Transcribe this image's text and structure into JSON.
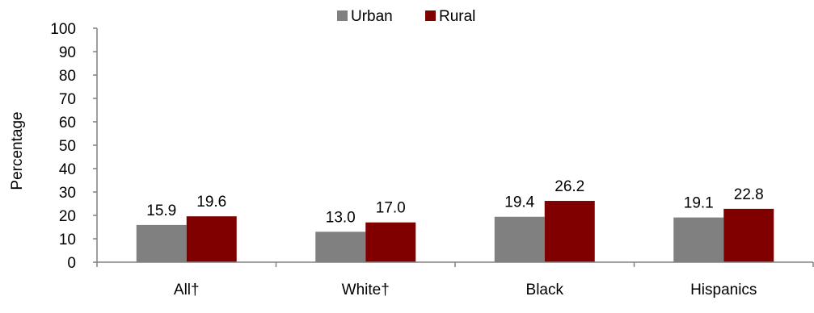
{
  "chart_data": {
    "type": "bar",
    "title": "",
    "xlabel": "",
    "ylabel": "Percentage",
    "ylim": [
      0,
      100
    ],
    "yticks": [
      0,
      10,
      20,
      30,
      40,
      50,
      60,
      70,
      80,
      90,
      100
    ],
    "categories": [
      "All†",
      "White†",
      "Black",
      "Hispanics"
    ],
    "series": [
      {
        "name": "Urban",
        "color": "#808080",
        "values": [
          15.9,
          13.0,
          19.4,
          19.1
        ],
        "labels": [
          "15.9",
          "13.0",
          "19.4",
          "19.1"
        ]
      },
      {
        "name": "Rural",
        "color": "#800000",
        "values": [
          19.6,
          17.0,
          26.2,
          22.8
        ],
        "labels": [
          "19.6",
          "17.0",
          "26.2",
          "22.8"
        ]
      }
    ],
    "legend": "top-center",
    "grid": false
  }
}
